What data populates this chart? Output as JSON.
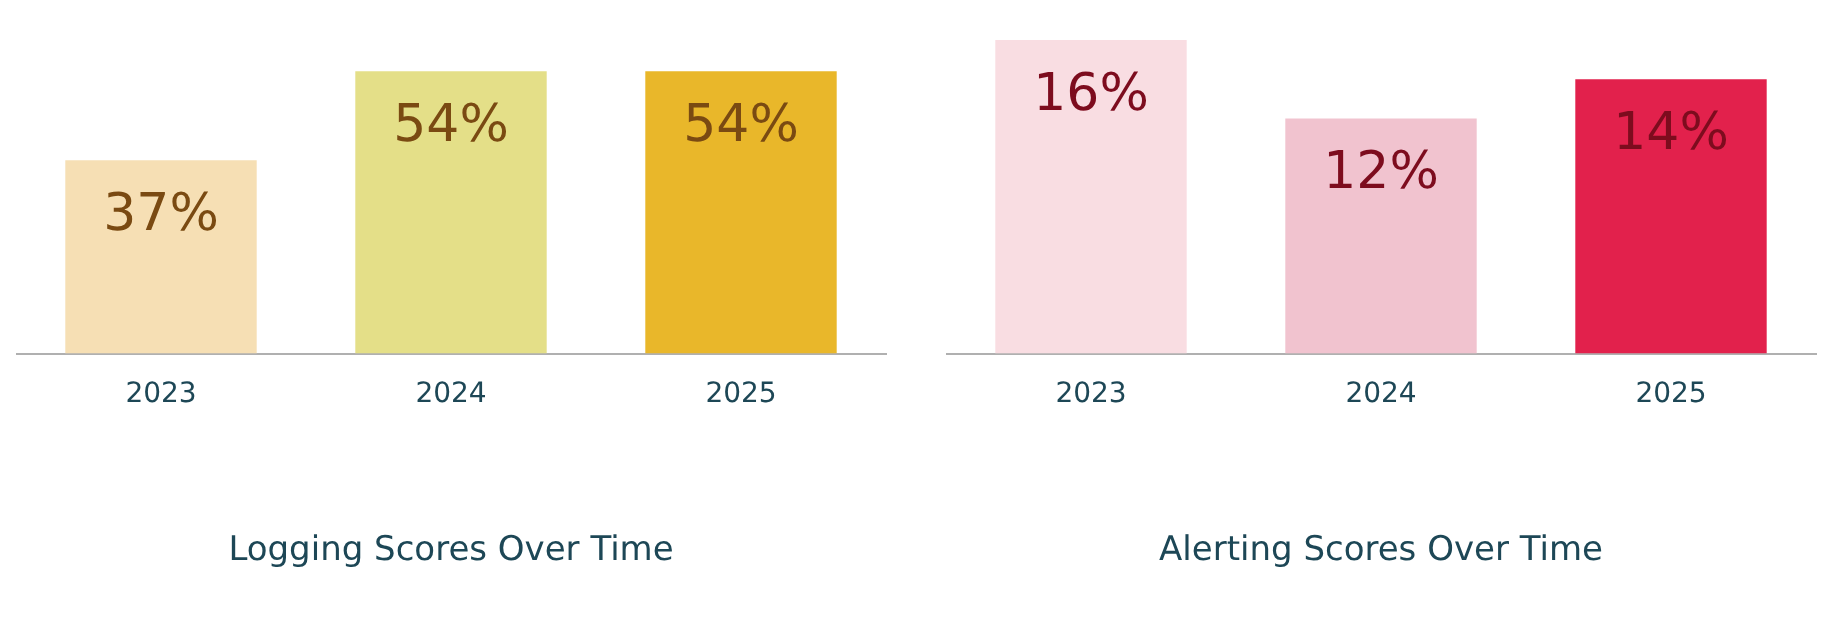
{
  "chart_data": [
    {
      "type": "bar",
      "title": "Logging Scores Over Time",
      "categories": [
        "2023",
        "2024",
        "2025"
      ],
      "values": [
        37,
        54,
        54
      ],
      "value_labels": [
        "37%",
        "54%",
        "54%"
      ],
      "colors": [
        "#f6dfb4",
        "#e4df88",
        "#e9b72a"
      ],
      "tick_labels": "x",
      "grid": false,
      "legend": false
    },
    {
      "type": "bar",
      "title": "Alerting Scores Over Time",
      "categories": [
        "2023",
        "2024",
        "2025"
      ],
      "values": [
        16,
        12,
        14
      ],
      "value_labels": [
        "16%",
        "12%",
        "14%"
      ],
      "colors": [
        "#f9dde2",
        "#f1c3cf",
        "#e2214c"
      ],
      "tick_labels": "x",
      "grid": false,
      "legend": false
    }
  ]
}
